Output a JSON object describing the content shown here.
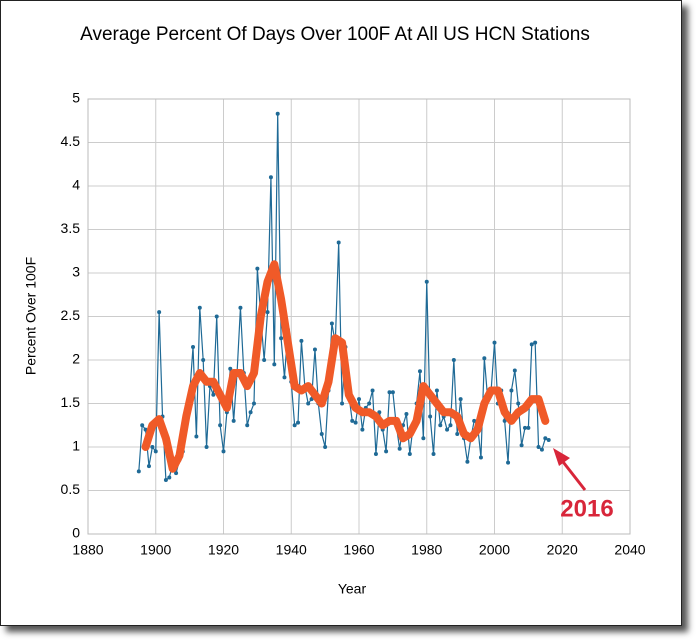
{
  "chart_data": {
    "type": "line",
    "title": "Average Percent Of Days Over 100F At All US HCN Stations",
    "xlabel": "Year",
    "ylabel": "Percent Over 100F",
    "annotation": "2016",
    "xlim": [
      1880,
      2040
    ],
    "xticks": [
      1880,
      1900,
      1920,
      1940,
      1960,
      1980,
      2000,
      2020,
      2040
    ],
    "ylim": [
      0,
      5
    ],
    "yticks": [
      0,
      0.5,
      1,
      1.5,
      2,
      2.5,
      3,
      3.5,
      4,
      4.5,
      5
    ],
    "grid": true,
    "series": [
      {
        "color": "#1f6a96",
        "markers": true,
        "x": [
          1895,
          1896,
          1897,
          1898,
          1899,
          1900,
          1901,
          1902,
          1903,
          1904,
          1905,
          1906,
          1907,
          1908,
          1909,
          1910,
          1911,
          1912,
          1913,
          1914,
          1915,
          1916,
          1917,
          1918,
          1919,
          1920,
          1921,
          1922,
          1923,
          1924,
          1925,
          1926,
          1927,
          1928,
          1929,
          1930,
          1931,
          1932,
          1933,
          1934,
          1935,
          1936,
          1937,
          1938,
          1939,
          1940,
          1941,
          1942,
          1943,
          1944,
          1945,
          1946,
          1947,
          1948,
          1949,
          1950,
          1951,
          1952,
          1953,
          1954,
          1955,
          1956,
          1957,
          1958,
          1959,
          1960,
          1961,
          1962,
          1963,
          1964,
          1965,
          1966,
          1967,
          1968,
          1969,
          1970,
          1971,
          1972,
          1973,
          1974,
          1975,
          1976,
          1977,
          1978,
          1979,
          1980,
          1981,
          1982,
          1983,
          1984,
          1985,
          1986,
          1987,
          1988,
          1989,
          1990,
          1991,
          1992,
          1993,
          1994,
          1995,
          1996,
          1997,
          1998,
          1999,
          2000,
          2001,
          2002,
          2003,
          2004,
          2005,
          2006,
          2007,
          2008,
          2009,
          2010,
          2011,
          2012,
          2013,
          2014,
          2015,
          2016
        ],
        "values": [
          0.72,
          1.25,
          1.2,
          0.78,
          1.0,
          0.95,
          2.55,
          1.35,
          0.62,
          0.65,
          0.8,
          0.7,
          0.85,
          0.95,
          1.4,
          1.6,
          2.15,
          1.12,
          2.6,
          2.0,
          1.0,
          1.7,
          1.6,
          2.5,
          1.25,
          0.95,
          1.4,
          1.9,
          1.3,
          1.85,
          2.6,
          1.85,
          1.25,
          1.4,
          1.5,
          3.05,
          2.5,
          2.0,
          2.55,
          4.1,
          1.95,
          4.83,
          2.25,
          1.8,
          2.35,
          1.75,
          1.25,
          1.28,
          2.22,
          1.7,
          1.5,
          1.55,
          2.12,
          1.5,
          1.15,
          1.0,
          1.65,
          2.42,
          2.2,
          3.35,
          1.5,
          2.15,
          1.6,
          1.3,
          1.28,
          1.55,
          1.2,
          1.45,
          1.5,
          1.65,
          0.92,
          1.4,
          1.2,
          0.95,
          1.63,
          1.63,
          1.25,
          0.98,
          1.25,
          1.38,
          0.92,
          1.25,
          1.5,
          1.87,
          1.1,
          2.9,
          1.35,
          0.92,
          1.65,
          1.25,
          1.35,
          1.2,
          1.25,
          2.0,
          1.15,
          1.55,
          1.1,
          0.83,
          1.1,
          1.3,
          1.25,
          0.88,
          2.02,
          1.55,
          1.65,
          2.2,
          1.5,
          1.65,
          1.3,
          0.82,
          1.65,
          1.88,
          1.5,
          1.02,
          1.22,
          1.22,
          2.18,
          2.2,
          1.0,
          0.97,
          1.1,
          1.08
        ]
      },
      {
        "color": "#f05a28",
        "markers": false,
        "x": [
          1897,
          1899,
          1901,
          1903,
          1905,
          1907,
          1909,
          1911,
          1913,
          1915,
          1917,
          1919,
          1921,
          1923,
          1925,
          1927,
          1929,
          1931,
          1933,
          1935,
          1937,
          1939,
          1941,
          1943,
          1945,
          1947,
          1949,
          1951,
          1953,
          1955,
          1957,
          1959,
          1961,
          1963,
          1965,
          1967,
          1969,
          1971,
          1973,
          1975,
          1977,
          1979,
          1981,
          1983,
          1985,
          1987,
          1989,
          1991,
          1993,
          1995,
          1997,
          1999,
          2001,
          2003,
          2005,
          2007,
          2009,
          2011,
          2013,
          2015
        ],
        "values": [
          1.0,
          1.25,
          1.32,
          1.1,
          0.75,
          0.9,
          1.35,
          1.7,
          1.85,
          1.75,
          1.75,
          1.6,
          1.45,
          1.85,
          1.85,
          1.7,
          1.85,
          2.5,
          2.9,
          3.1,
          2.7,
          2.2,
          1.7,
          1.65,
          1.7,
          1.6,
          1.5,
          1.75,
          2.25,
          2.2,
          1.6,
          1.45,
          1.4,
          1.4,
          1.35,
          1.25,
          1.3,
          1.3,
          1.1,
          1.15,
          1.3,
          1.7,
          1.6,
          1.5,
          1.4,
          1.4,
          1.35,
          1.15,
          1.1,
          1.2,
          1.5,
          1.65,
          1.65,
          1.4,
          1.3,
          1.4,
          1.45,
          1.55,
          1.55,
          1.3
        ]
      }
    ]
  }
}
